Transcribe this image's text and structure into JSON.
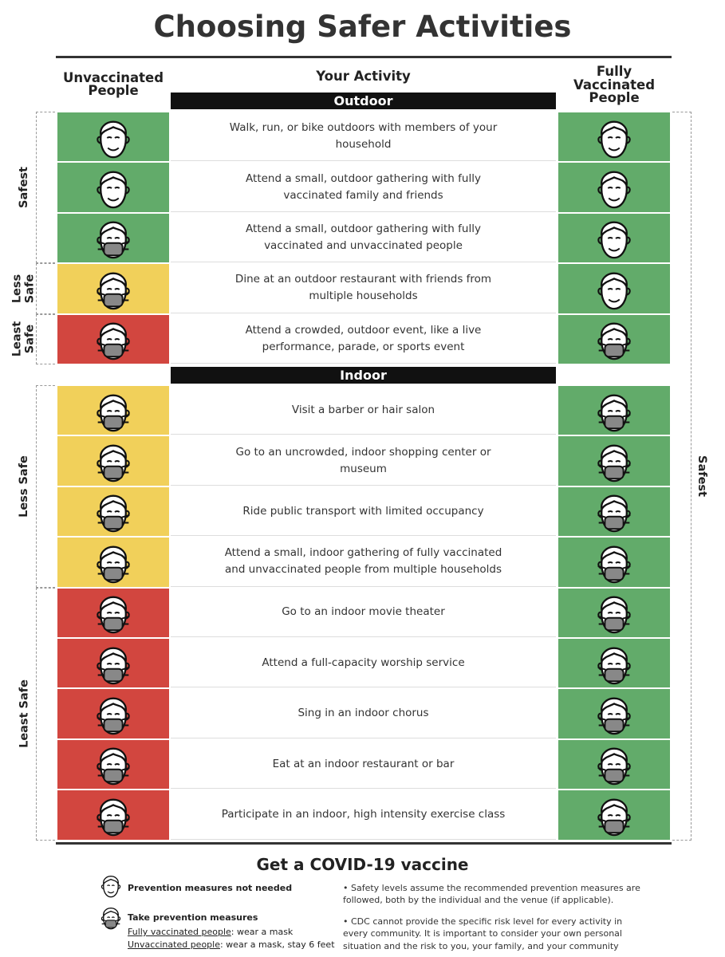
{
  "title": "Choosing Safer Activities",
  "header": {
    "unvaccinated": "Unvaccinated People",
    "activity": "Your Activity",
    "vaccinated": "Fully Vaccinated People"
  },
  "colors": {
    "Safest": "#62ab6a",
    "Less Safe": "#f1d05a",
    "Least Safe": "#d2463f"
  },
  "sections": [
    {
      "name": "Outdoor",
      "rows": [
        {
          "activity": "Walk, run, or bike outdoors with members of your household",
          "unvaccinated_risk": "Safest",
          "unvaccinated_mask": false,
          "vaccinated_risk": "Safest",
          "vaccinated_mask": false
        },
        {
          "activity": "Attend a small, outdoor gathering with fully vaccinated family and friends",
          "unvaccinated_risk": "Safest",
          "unvaccinated_mask": false,
          "vaccinated_risk": "Safest",
          "vaccinated_mask": false
        },
        {
          "activity": "Attend a small, outdoor gathering with fully vaccinated and unvaccinated people",
          "unvaccinated_risk": "Safest",
          "unvaccinated_mask": true,
          "vaccinated_risk": "Safest",
          "vaccinated_mask": false
        },
        {
          "activity": "Dine at an outdoor restaurant with friends from multiple households",
          "unvaccinated_risk": "Less Safe",
          "unvaccinated_mask": true,
          "vaccinated_risk": "Safest",
          "vaccinated_mask": false
        },
        {
          "activity": "Attend a crowded, outdoor event, like a live performance, parade, or sports event",
          "unvaccinated_risk": "Least Safe",
          "unvaccinated_mask": true,
          "vaccinated_risk": "Safest",
          "vaccinated_mask": true
        }
      ]
    },
    {
      "name": "Indoor",
      "rows": [
        {
          "activity": "Visit a barber or hair salon",
          "unvaccinated_risk": "Less Safe",
          "unvaccinated_mask": true,
          "vaccinated_risk": "Safest",
          "vaccinated_mask": true
        },
        {
          "activity": "Go to an uncrowded, indoor shopping center or museum",
          "unvaccinated_risk": "Less Safe",
          "unvaccinated_mask": true,
          "vaccinated_risk": "Safest",
          "vaccinated_mask": true
        },
        {
          "activity": "Ride public transport with limited occupancy",
          "unvaccinated_risk": "Less Safe",
          "unvaccinated_mask": true,
          "vaccinated_risk": "Safest",
          "vaccinated_mask": true
        },
        {
          "activity": "Attend a small, indoor gathering of fully vaccinated and unvaccinated people from multiple households",
          "unvaccinated_risk": "Less Safe",
          "unvaccinated_mask": true,
          "vaccinated_risk": "Safest",
          "vaccinated_mask": true
        },
        {
          "activity": "Go to an indoor movie theater",
          "unvaccinated_risk": "Least Safe",
          "unvaccinated_mask": true,
          "vaccinated_risk": "Safest",
          "vaccinated_mask": true
        },
        {
          "activity": "Attend a full-capacity worship service",
          "unvaccinated_risk": "Least Safe",
          "unvaccinated_mask": true,
          "vaccinated_risk": "Safest",
          "vaccinated_mask": true
        },
        {
          "activity": "Sing in an indoor chorus",
          "unvaccinated_risk": "Least Safe",
          "unvaccinated_mask": true,
          "vaccinated_risk": "Safest",
          "vaccinated_mask": true
        },
        {
          "activity": "Eat at an indoor restaurant or bar",
          "unvaccinated_risk": "Least Safe",
          "unvaccinated_mask": true,
          "vaccinated_risk": "Safest",
          "vaccinated_mask": true
        },
        {
          "activity": "Participate in an indoor, high intensity exercise class",
          "unvaccinated_risk": "Least Safe",
          "unvaccinated_mask": true,
          "vaccinated_risk": "Safest",
          "vaccinated_mask": true
        }
      ]
    }
  ],
  "footer": {
    "cta": "Get a COVID-19 vaccine",
    "legend": {
      "no_mask": "Prevention measures not needed",
      "mask": "Take prevention measures",
      "vaccinated": "Fully vaccinated people",
      "vaccinated_rule": ": wear a mask",
      "unvaccinated": "Unvaccinated people",
      "unvaccinated_rule": ": wear a mask, stay 6 feet"
    },
    "notes": [
      "Safety levels assume the recommended prevention measures are followed, both by the individual and the venue (if applicable).",
      "CDC cannot provide the specific risk level for every activity in every community. It is important to consider your own personal situation and the risk to you, your family, and your community"
    ]
  }
}
